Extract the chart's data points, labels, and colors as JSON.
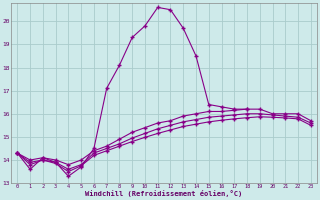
{
  "title": "",
  "xlabel": "Windchill (Refroidissement éolien,°C)",
  "background_color": "#ceeaea",
  "grid_color": "#aacccc",
  "line_color": "#880088",
  "xlim": [
    -0.5,
    23.5
  ],
  "ylim": [
    13,
    20.8
  ],
  "xticks": [
    0,
    1,
    2,
    3,
    4,
    5,
    6,
    7,
    8,
    9,
    10,
    11,
    12,
    13,
    14,
    15,
    16,
    17,
    18,
    19,
    20,
    21,
    22,
    23
  ],
  "yticks": [
    13,
    14,
    15,
    16,
    17,
    18,
    19,
    20
  ],
  "line1_x": [
    0,
    1,
    2,
    3,
    4,
    5,
    6,
    7,
    8,
    9,
    10,
    11,
    12,
    13,
    14,
    15,
    16,
    17,
    18
  ],
  "line1_y": [
    14.3,
    13.6,
    14.1,
    13.9,
    13.3,
    13.7,
    14.5,
    17.1,
    18.1,
    19.3,
    19.8,
    20.6,
    20.5,
    19.7,
    18.5,
    16.4,
    16.3,
    16.2,
    16.2
  ],
  "line2_x": [
    0,
    1,
    2,
    3,
    4,
    5,
    6,
    7,
    8,
    9,
    10,
    11,
    12,
    13,
    14,
    15,
    16,
    17,
    18,
    19,
    20,
    21,
    22,
    23
  ],
  "line2_y": [
    14.3,
    14.0,
    14.1,
    14.0,
    13.8,
    14.0,
    14.4,
    14.6,
    14.9,
    15.2,
    15.4,
    15.6,
    15.7,
    15.9,
    16.0,
    16.1,
    16.1,
    16.15,
    16.2,
    16.2,
    16.0,
    16.0,
    16.0,
    15.7
  ],
  "line3_x": [
    0,
    1,
    2,
    3,
    4,
    5,
    6,
    7,
    8,
    9,
    10,
    11,
    12,
    13,
    14,
    15,
    16,
    17,
    18,
    19,
    20,
    21,
    22,
    23
  ],
  "line3_y": [
    14.3,
    13.9,
    14.0,
    13.9,
    13.6,
    13.8,
    14.3,
    14.5,
    14.7,
    14.95,
    15.15,
    15.35,
    15.5,
    15.65,
    15.75,
    15.85,
    15.9,
    15.95,
    16.0,
    16.0,
    15.95,
    15.9,
    15.85,
    15.6
  ],
  "line4_x": [
    0,
    1,
    2,
    3,
    4,
    5,
    6,
    7,
    8,
    9,
    10,
    11,
    12,
    13,
    14,
    15,
    16,
    17,
    18,
    19,
    20,
    21,
    22,
    23
  ],
  "line4_y": [
    14.3,
    13.8,
    14.0,
    13.85,
    13.5,
    13.75,
    14.2,
    14.4,
    14.6,
    14.8,
    14.98,
    15.15,
    15.3,
    15.45,
    15.55,
    15.65,
    15.72,
    15.78,
    15.83,
    15.87,
    15.85,
    15.82,
    15.78,
    15.5
  ]
}
